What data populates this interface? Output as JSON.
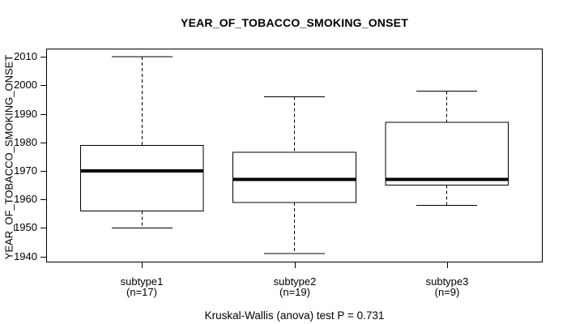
{
  "chart_data": {
    "type": "boxplot",
    "title": "YEAR_OF_TOBACCO_SMOKING_ONSET",
    "ylabel": "YEAR_OF_TOBACCO_SMOKING_ONSET",
    "caption": "Kruskal-Wallis (anova) test P = 0.731",
    "statistical_test": {
      "name": "Kruskal-Wallis (anova)",
      "p_value": 0.731
    },
    "ylim": [
      1938.2,
      2012.6
    ],
    "yticks": [
      1940,
      1950,
      1960,
      1970,
      1980,
      1990,
      2000,
      2010
    ],
    "categories": [
      "subtype1",
      "subtype2",
      "subtype3"
    ],
    "category_sublabels": [
      "(n=17)",
      "(n=19)",
      "(n=9)"
    ],
    "series": [
      {
        "name": "subtype1",
        "n": 17,
        "min": 1950,
        "q1": 1956,
        "median": 1970,
        "q3": 1979,
        "max": 2010
      },
      {
        "name": "subtype2",
        "n": 19,
        "min": 1941,
        "q1": 1959,
        "median": 1967,
        "q3": 1976.5,
        "max": 1996
      },
      {
        "name": "subtype3",
        "n": 9,
        "min": 1958,
        "q1": 1965,
        "median": 1967,
        "q3": 1987,
        "max": 1998
      }
    ],
    "grid": false,
    "legend_position": "none",
    "colors": {
      "line": "#000000",
      "box_fill": "#ffffff",
      "background": "#ffffff"
    }
  }
}
